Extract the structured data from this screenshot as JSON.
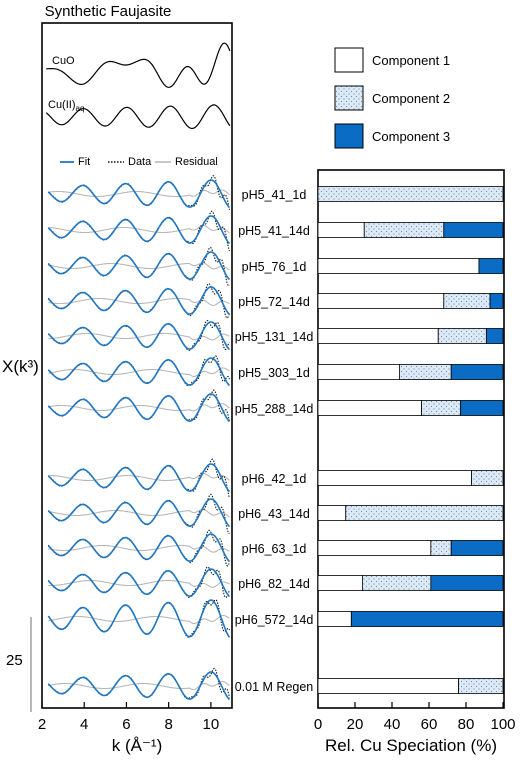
{
  "colors": {
    "fit": "#1f77c4",
    "data": "#111111",
    "residual": "#b8b8b8",
    "component_1": "#ffffff",
    "component_2": "#ddeaf6",
    "component_3": "#0a6cc4",
    "frame": "#000000"
  },
  "chart_data": [
    {
      "type": "line",
      "title": "Synthetic Faujasite",
      "xlabel": "k (Å⁻¹)",
      "ylabel": "X(k³)",
      "xlim": [
        2,
        11
      ],
      "xticks": [
        2,
        4,
        6,
        8,
        10
      ],
      "scale_bar_label": "25",
      "reference_spectra": [
        {
          "name": "CuO",
          "subscript": ""
        },
        {
          "name": "Cu(II)",
          "subscript": "aq"
        }
      ],
      "legend": [
        "Fit",
        "Data",
        "Residual"
      ],
      "samples": [
        "pH5_41_1d",
        "pH5_41_14d",
        "pH5_76_1d",
        "pH5_72_14d",
        "pH5_131_14d",
        "pH5_303_1d",
        "pH5_288_14d",
        "pH6_42_1d",
        "pH6_43_14d",
        "pH6_63_1d",
        "pH6_82_14d",
        "pH6_572_14d",
        "0.01 M Regen"
      ]
    },
    {
      "type": "bar",
      "orientation": "horizontal",
      "stacked": true,
      "xlabel": "Rel. Cu Speciation (%)",
      "xlim": [
        0,
        100
      ],
      "xticks": [
        0,
        20,
        40,
        60,
        80,
        100
      ],
      "categories": [
        "pH5_41_1d",
        "pH5_41_14d",
        "pH5_76_1d",
        "pH5_72_14d",
        "pH5_131_14d",
        "pH5_303_1d",
        "pH5_288_14d",
        "pH6_42_1d",
        "pH6_43_14d",
        "pH6_63_1d",
        "pH6_82_14d",
        "pH6_572_14d",
        "0.01 M Regen"
      ],
      "series": [
        {
          "name": "Component 1",
          "values": [
            0,
            25,
            87,
            68,
            65,
            44,
            56,
            83,
            15,
            61,
            24,
            18,
            76
          ]
        },
        {
          "name": "Component 2",
          "values": [
            100,
            43,
            0,
            25,
            26,
            28,
            21,
            17,
            85,
            11,
            37,
            0,
            24
          ]
        },
        {
          "name": "Component 3",
          "values": [
            0,
            32,
            13,
            7,
            9,
            28,
            23,
            0,
            0,
            28,
            39,
            82,
            0
          ]
        }
      ]
    }
  ]
}
